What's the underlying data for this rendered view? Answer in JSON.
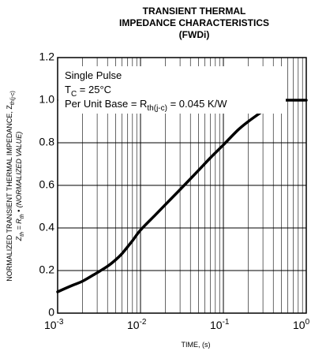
{
  "chart_data": {
    "type": "line",
    "title_lines": [
      "TRANSIENT THERMAL",
      "IMPEDANCE CHARACTERISTICS",
      "(FWDi)"
    ],
    "xlabel": "TIME, (s)",
    "ylabel": {
      "line1_main": "NORMALIZED TRANSIENT THERMAL IMPEDANCE, Z",
      "line1_sub": "th(j-c)",
      "line2_a": "Z",
      "line2_a_sub": "th",
      "line2_b": " = R",
      "line2_b_sub": "th",
      "line2_c": " • (NORMALIZED VALUE)"
    },
    "x_scale": "log",
    "xlim": [
      0.001,
      1
    ],
    "ylim": [
      0,
      1.2
    ],
    "x_ticks": [
      {
        "base": "10",
        "exp": "-3"
      },
      {
        "base": "10",
        "exp": "-2"
      },
      {
        "base": "10",
        "exp": "-1"
      },
      {
        "base": "10",
        "exp": "0"
      }
    ],
    "y_ticks": [
      "0",
      "0.2",
      "0.4",
      "0.6",
      "0.8",
      "1.0",
      "1.2"
    ],
    "grid": true,
    "annotations": {
      "line1": "Single Pulse",
      "line2_main": "T",
      "line2_sub": "C",
      "line2_rest": " = 25°C",
      "line3_main": "Per Unit Base = R",
      "line3_sub": "th(j-c)",
      "line3_rest": " = 0.045 K/W"
    },
    "series": [
      {
        "x": [
          0.001,
          0.0015,
          0.002,
          0.003,
          0.004,
          0.005,
          0.006,
          0.008,
          0.01,
          0.015,
          0.02,
          0.03,
          0.05,
          0.07,
          0.1,
          0.15,
          0.2,
          0.3,
          0.4,
          0.45,
          0.5,
          0.6,
          0.8,
          1
        ],
        "y": [
          0.1,
          0.13,
          0.15,
          0.19,
          0.22,
          0.25,
          0.28,
          0.34,
          0.39,
          0.46,
          0.51,
          0.58,
          0.67,
          0.73,
          0.79,
          0.86,
          0.9,
          0.95,
          0.99,
          1.0,
          1.0,
          1.0,
          1.0,
          1.0
        ]
      }
    ]
  }
}
